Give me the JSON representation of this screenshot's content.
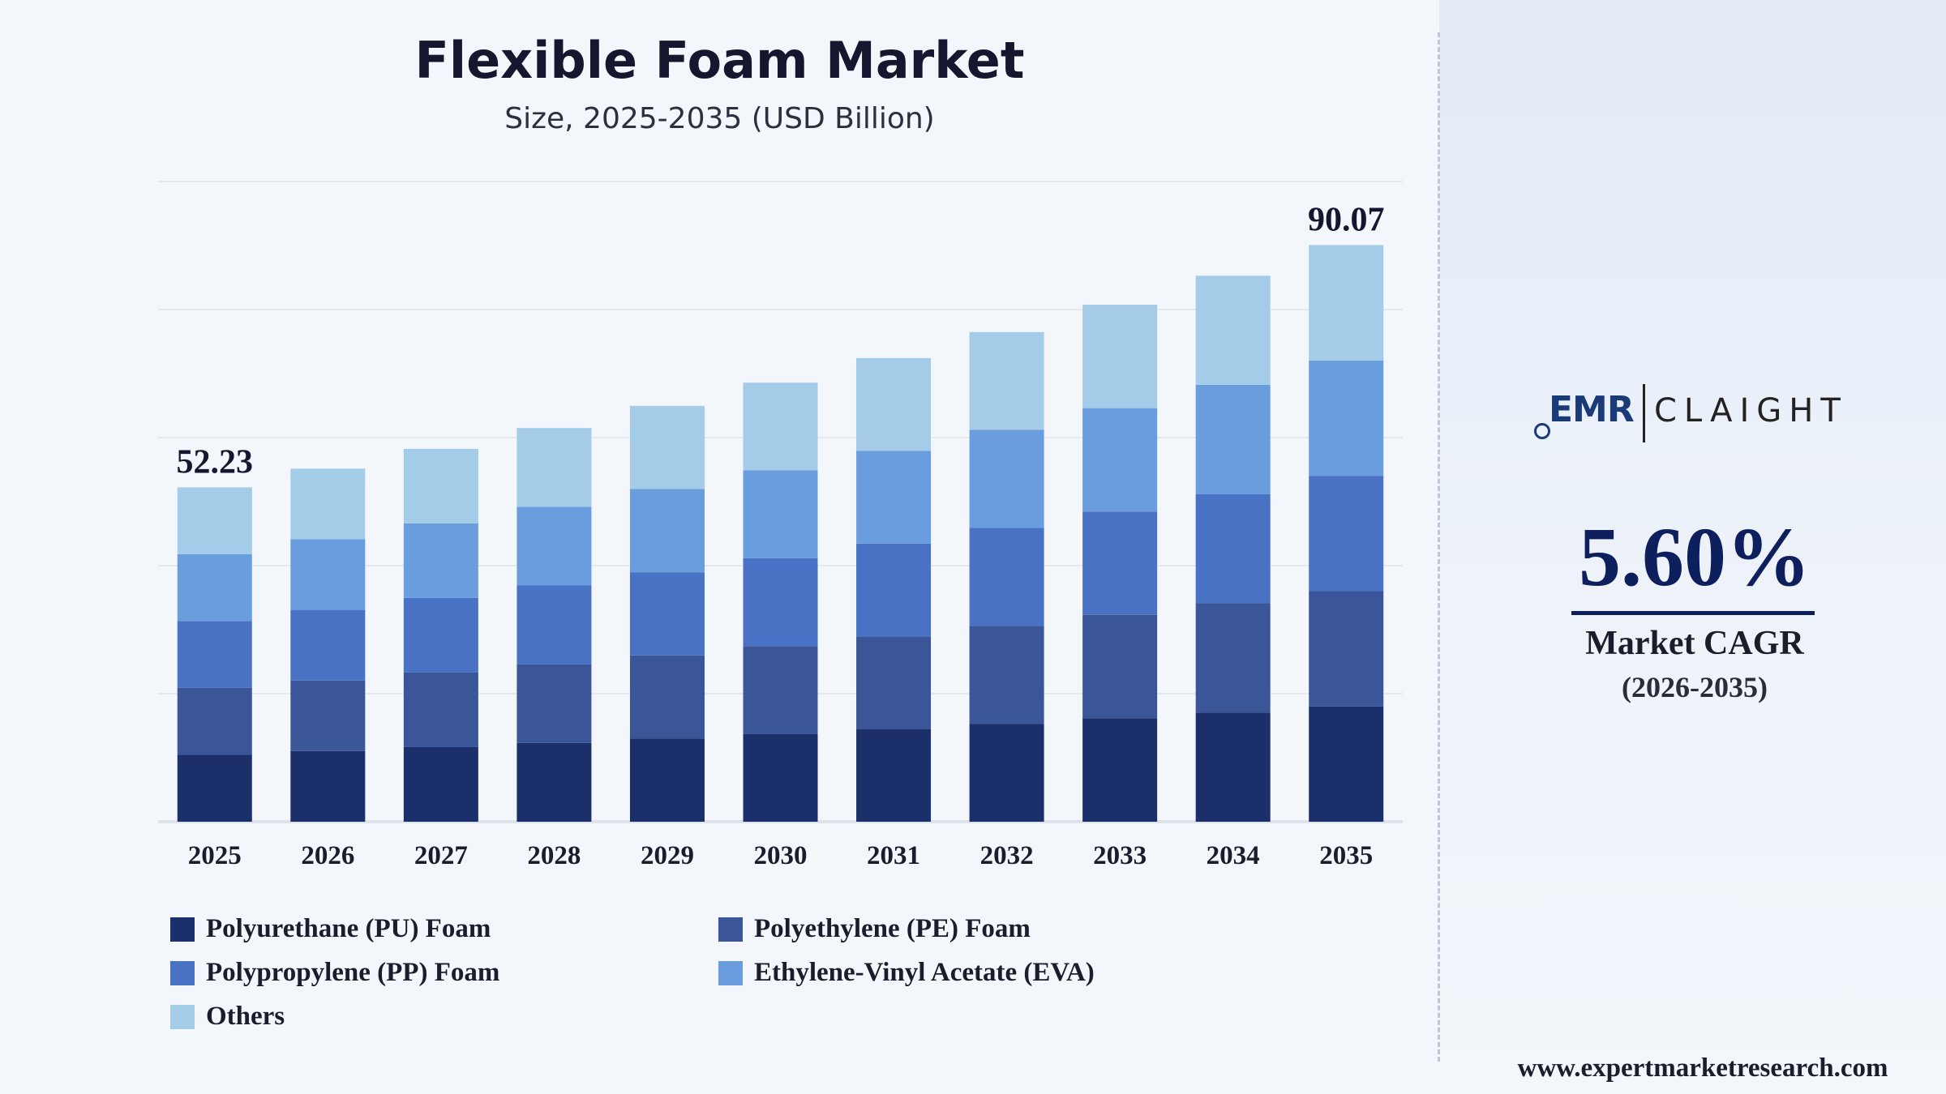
{
  "header": {
    "title": "Flexible Foam Market",
    "subtitle": "Size, 2025-2035 (USD Billion)"
  },
  "chart_data": {
    "type": "bar",
    "stacked": true,
    "categories": [
      "2025",
      "2026",
      "2027",
      "2028",
      "2029",
      "2030",
      "2031",
      "2032",
      "2033",
      "2034",
      "2035"
    ],
    "totals": [
      52.23,
      55.15,
      58.24,
      61.5,
      64.95,
      68.58,
      72.42,
      76.48,
      80.76,
      85.28,
      90.07
    ],
    "total_labels": {
      "2025": "52.23",
      "2035": "90.07"
    },
    "ylim": [
      0,
      100
    ],
    "grid": true,
    "legend_position": "bottom",
    "series": [
      {
        "name": "Polyurethane (PU) Foam",
        "color": "#1b2f6b",
        "values": [
          10.45,
          11.03,
          11.65,
          12.3,
          12.99,
          13.72,
          14.48,
          15.3,
          16.15,
          17.06,
          18.01
        ]
      },
      {
        "name": "Polyethylene (PE) Foam",
        "color": "#3a5699",
        "values": [
          10.45,
          11.03,
          11.65,
          12.3,
          12.99,
          13.72,
          14.48,
          15.3,
          16.15,
          17.06,
          18.01
        ]
      },
      {
        "name": "Polypropylene (PP) Foam",
        "color": "#4a72c4",
        "values": [
          10.45,
          11.03,
          11.65,
          12.3,
          12.99,
          13.72,
          14.48,
          15.3,
          16.15,
          17.06,
          18.01
        ]
      },
      {
        "name": "Ethylene-Vinyl Acetate (EVA)",
        "color": "#6a9ddd",
        "values": [
          10.45,
          11.03,
          11.65,
          12.3,
          12.99,
          13.72,
          14.48,
          15.3,
          16.15,
          17.06,
          18.01
        ]
      },
      {
        "name": "Others",
        "color": "#a4cbe7",
        "values": [
          10.43,
          11.03,
          11.64,
          12.3,
          12.99,
          13.7,
          14.5,
          15.28,
          16.16,
          17.04,
          18.03
        ]
      }
    ]
  },
  "legend": {
    "items": [
      {
        "label": "Polyurethane (PU) Foam",
        "color": "#1b2f6b"
      },
      {
        "label": "Polyethylene (PE) Foam",
        "color": "#3a5699"
      },
      {
        "label": "Polypropylene (PP) Foam",
        "color": "#4a72c4"
      },
      {
        "label": "Ethylene-Vinyl Acetate (EVA)",
        "color": "#6a9ddd"
      },
      {
        "label": "Others",
        "color": "#a4cbe7"
      }
    ]
  },
  "sidebar": {
    "logo_emr": "EMR",
    "logo_claight": "CLAIGHT",
    "cagr_value": "5.60%",
    "cagr_label": "Market CAGR",
    "cagr_period": "(2026-2035)",
    "website": "www.expertmarketresearch.com"
  }
}
